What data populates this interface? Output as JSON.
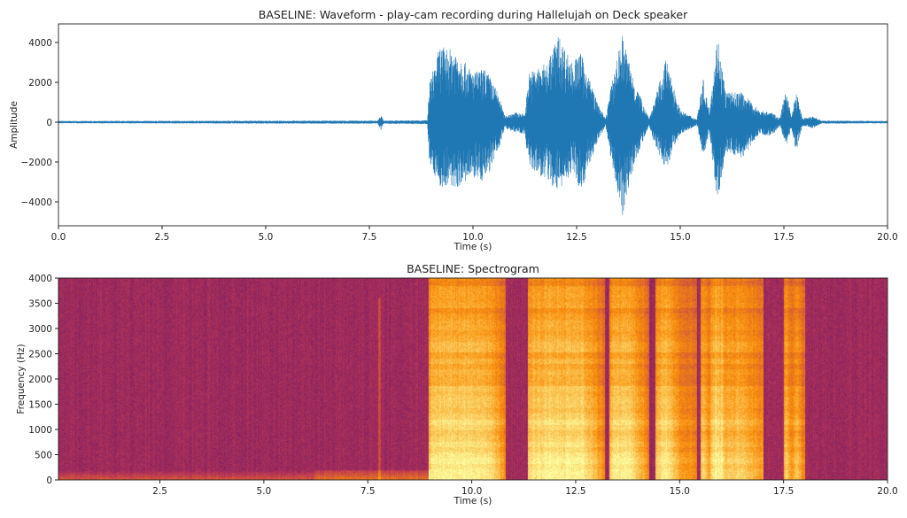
{
  "chart_data": [
    {
      "type": "line",
      "title": "BASELINE: Waveform - play-cam recording during Hallelujah on Deck speaker",
      "xlabel": "Time (s)",
      "ylabel": "Amplitude",
      "xlim": [
        0,
        20
      ],
      "ylim": [
        -5200,
        4930
      ],
      "xticks": [
        "0.0",
        "2.5",
        "5.0",
        "7.5",
        "10.0",
        "12.5",
        "15.0",
        "17.5",
        "20.0"
      ],
      "xtick_values": [
        0,
        2.5,
        5,
        7.5,
        10,
        12.5,
        15,
        17.5,
        20
      ],
      "yticks": [
        "4000",
        "2000",
        "0",
        "−2000",
        "−4000"
      ],
      "ytick_values": [
        4000,
        2000,
        0,
        -2000,
        -4000
      ],
      "color": "#1f77b4",
      "grid": false,
      "envelope_columns": [
        "time_s",
        "max_amplitude",
        "min_amplitude"
      ],
      "envelope": [
        [
          0,
          60,
          -60
        ],
        [
          7.7,
          80,
          -80
        ],
        [
          7.78,
          350,
          -400
        ],
        [
          7.85,
          80,
          -80
        ],
        [
          8.9,
          100,
          -100
        ],
        [
          8.95,
          2000,
          -2000
        ],
        [
          9.2,
          3800,
          -3300
        ],
        [
          9.6,
          3600,
          -3300
        ],
        [
          10.0,
          2500,
          -2800
        ],
        [
          10.3,
          2700,
          -3000
        ],
        [
          10.6,
          1500,
          -1500
        ],
        [
          10.77,
          300,
          -300
        ],
        [
          11.0,
          500,
          -500
        ],
        [
          11.25,
          400,
          -600
        ],
        [
          11.35,
          2500,
          -2300
        ],
        [
          11.8,
          3000,
          -3000
        ],
        [
          12.05,
          4400,
          -3500
        ],
        [
          12.4,
          3000,
          -2500
        ],
        [
          12.6,
          3500,
          -3500
        ],
        [
          13.0,
          1000,
          -1000
        ],
        [
          13.2,
          150,
          -150
        ],
        [
          13.3,
          1500,
          -1500
        ],
        [
          13.6,
          4400,
          -4750
        ],
        [
          13.9,
          2000,
          -2000
        ],
        [
          14.25,
          200,
          -200
        ],
        [
          14.4,
          1200,
          -1200
        ],
        [
          14.65,
          3200,
          -2400
        ],
        [
          15.0,
          600,
          -600
        ],
        [
          15.4,
          150,
          -150
        ],
        [
          15.55,
          2200,
          -1800
        ],
        [
          15.7,
          600,
          -600
        ],
        [
          15.9,
          4400,
          -4000
        ],
        [
          16.1,
          1500,
          -1500
        ],
        [
          16.5,
          1500,
          -1800
        ],
        [
          16.9,
          600,
          -600
        ],
        [
          17.2,
          500,
          -700
        ],
        [
          17.4,
          200,
          -200
        ],
        [
          17.56,
          1700,
          -1200
        ],
        [
          17.68,
          300,
          -300
        ],
        [
          17.8,
          1500,
          -1500
        ],
        [
          17.95,
          200,
          -200
        ],
        [
          18.2,
          300,
          -300
        ],
        [
          18.4,
          80,
          -80
        ],
        [
          20,
          60,
          -60
        ]
      ]
    },
    {
      "type": "heatmap",
      "title": "BASELINE: Spectrogram",
      "xlabel": "Time (s)",
      "ylabel": "Frequency (Hz)",
      "xlim": [
        0.06,
        20
      ],
      "ylim": [
        0,
        4000
      ],
      "xticks": [
        "2.5",
        "5.0",
        "7.5",
        "10.0",
        "12.5",
        "15.0",
        "17.5",
        "20.0"
      ],
      "xtick_values": [
        2.5,
        5,
        7.5,
        10,
        12.5,
        15,
        17.5,
        20
      ],
      "yticks": [
        "0",
        "500",
        "1000",
        "1500",
        "2000",
        "2500",
        "3000",
        "3500",
        "4000"
      ],
      "ytick_values": [
        0,
        500,
        1000,
        1500,
        2000,
        2500,
        3000,
        3500,
        4000
      ],
      "colormap": "inferno",
      "colormap_stops": [
        "#000004",
        "#57106e",
        "#bc3754",
        "#f98e09",
        "#fcffa4"
      ],
      "active_segments_s": [
        [
          8.95,
          10.8
        ],
        [
          11.35,
          13.2
        ],
        [
          13.3,
          14.25
        ],
        [
          14.4,
          15.4
        ],
        [
          15.5,
          17.0
        ],
        [
          17.5,
          18.0
        ]
      ]
    }
  ]
}
